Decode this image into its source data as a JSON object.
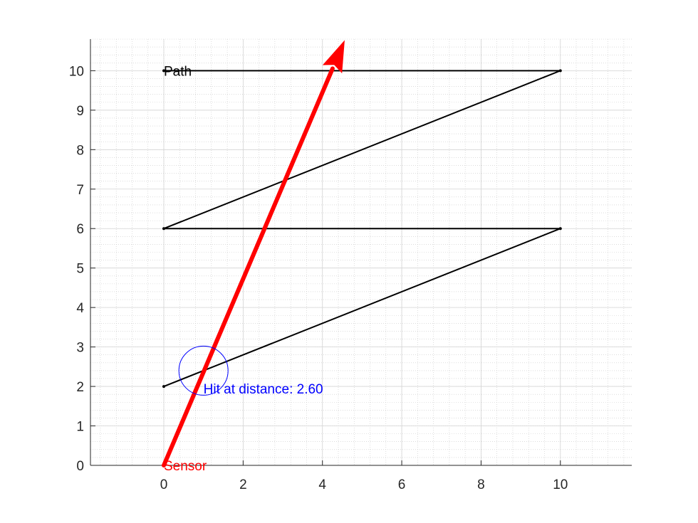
{
  "chart_data": {
    "type": "line",
    "title": "",
    "xlabel": "",
    "ylabel": "",
    "xlim": [
      -1.85,
      11.8
    ],
    "ylim": [
      0,
      10.8
    ],
    "xticks": [
      0,
      2,
      4,
      6,
      8,
      10
    ],
    "yticks": [
      0,
      1,
      2,
      3,
      4,
      5,
      6,
      7,
      8,
      9,
      10
    ],
    "xtick_labels": [
      "0",
      "2",
      "4",
      "6",
      "8",
      "10"
    ],
    "ytick_labels": [
      "0",
      "1",
      "2",
      "3",
      "4",
      "5",
      "6",
      "7",
      "8",
      "9",
      "10"
    ],
    "grid": true,
    "minor_grid": true,
    "series": [
      {
        "color": "#000000",
        "points": [
          [
            0,
            2
          ],
          [
            10,
            6
          ],
          [
            0,
            6
          ],
          [
            10,
            10
          ],
          [
            0,
            10
          ]
        ]
      },
      {
        "color": "#ff0000",
        "type": "arrow",
        "points": [
          [
            0,
            0
          ],
          [
            4.55,
            10.75
          ]
        ]
      }
    ],
    "markers": [
      {
        "type": "circle",
        "color": "#0000ff",
        "center": [
          1.0,
          2.4
        ],
        "radius_data": 0.62
      }
    ],
    "annotations": [
      {
        "text": "Path",
        "x": 0,
        "y": 10,
        "color": "#000000"
      },
      {
        "text": "Hit at distance: 2.60",
        "x": 1.0,
        "y": 1.95,
        "color": "#0000ff"
      },
      {
        "text": "Sensor",
        "x": 0,
        "y": 0,
        "color": "#ff0000"
      }
    ]
  }
}
